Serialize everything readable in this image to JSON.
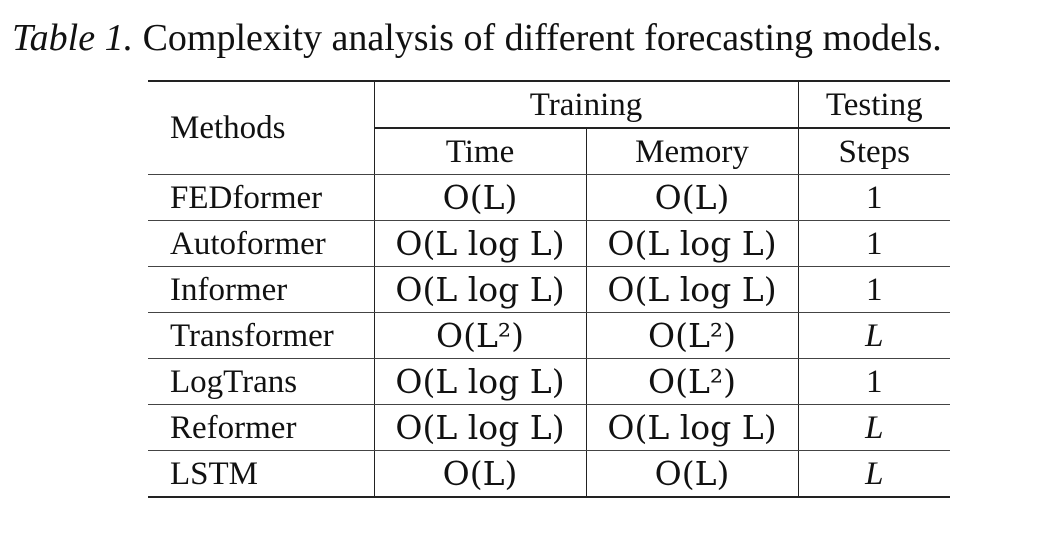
{
  "caption": {
    "label": "Table 1.",
    "text": "Complexity analysis of different forecasting models."
  },
  "table": {
    "header": {
      "methods": "Methods",
      "training": "Training",
      "testing": "Testing",
      "time": "Time",
      "memory": "Memory",
      "steps": "Steps"
    },
    "rows": [
      {
        "method": "FEDformer",
        "time": "O(L)",
        "memory": "O(L)",
        "steps": "1"
      },
      {
        "method": "Autoformer",
        "time": "O(L log L)",
        "memory": "O(L log L)",
        "steps": "1"
      },
      {
        "method": "Informer",
        "time": "O(L log L)",
        "memory": "O(L log L)",
        "steps": "1"
      },
      {
        "method": "Transformer",
        "time": "O(L²)",
        "memory": "O(L²)",
        "steps": "L"
      },
      {
        "method": "LogTrans",
        "time": "O(L log L)",
        "memory": "O(L²)",
        "steps": "1"
      },
      {
        "method": "Reformer",
        "time": "O(L log L)",
        "memory": "O(L log L)",
        "steps": "L"
      },
      {
        "method": "LSTM",
        "time": "O(L)",
        "memory": "O(L)",
        "steps": "L"
      }
    ]
  }
}
